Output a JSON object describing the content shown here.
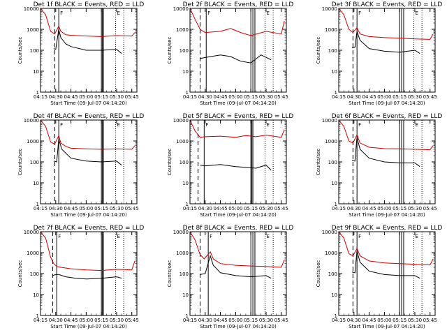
{
  "chart_data": [
    {
      "type": "line",
      "title": "Det 1f BLACK = Events, RED = LLD",
      "xlabel": "Start Time (09-Jul-07 04:14:20)",
      "ylabel": "Counts/sec",
      "yscale": "log",
      "ylim": [
        1,
        10000
      ],
      "x_ticks": [
        "04:15",
        "04:30",
        "04:45",
        "05:00",
        "05:15",
        "05:30",
        "05:45"
      ],
      "y_ticks": [
        "1",
        "10",
        "100",
        "1000",
        "10000"
      ],
      "markers": {
        "dashed": [
          "04:29"
        ],
        "solid": [
          "04:33",
          "05:15",
          "05:16",
          "05:17"
        ],
        "dotted": [
          "05:29",
          "05:37"
        ],
        "letters": [
          "F",
          "E"
        ]
      },
      "series": [
        {
          "name": "RED",
          "color": "#cc0000",
          "x": [
            "04:15",
            "04:20",
            "04:25",
            "04:29",
            "04:33",
            "04:35",
            "04:40",
            "04:45",
            "05:00",
            "05:15",
            "05:30",
            "05:45",
            "05:48"
          ],
          "y": [
            10000,
            5000,
            800,
            600,
            1400,
            800,
            550,
            520,
            480,
            450,
            500,
            480,
            700
          ]
        },
        {
          "name": "BLACK",
          "color": "#000000",
          "x": [
            "04:28",
            "04:30",
            "04:33",
            "04:35",
            "04:40",
            "04:45",
            "05:00",
            "05:15",
            "05:30",
            "05:35"
          ],
          "y": [
            120,
            110,
            1000,
            400,
            200,
            150,
            100,
            100,
            110,
            70
          ]
        }
      ]
    },
    {
      "type": "line",
      "title": "Det 2f BLACK = Events, RED = LLD",
      "xlabel": "Start Time (09-Jul-07 04:14:20)",
      "ylabel": "Counts/sec",
      "yscale": "log",
      "ylim": [
        1,
        10000
      ],
      "x_ticks": [
        "04:15",
        "04:30",
        "04:45",
        "05:00",
        "05:15",
        "05:30",
        "05:45"
      ],
      "y_ticks": [
        "1",
        "10",
        "100",
        "1000",
        "10000"
      ],
      "markers": {
        "dashed": [
          "04:25"
        ],
        "solid": [
          "04:31",
          "05:15",
          "05:17",
          "05:19"
        ],
        "dotted": [
          "05:29",
          "05:37"
        ],
        "letters": [
          "F",
          "E"
        ]
      },
      "series": [
        {
          "name": "RED",
          "color": "#cc0000",
          "x": [
            "04:15",
            "04:20",
            "04:25",
            "04:30",
            "04:45",
            "04:55",
            "05:05",
            "05:15",
            "05:30",
            "05:45",
            "05:48"
          ],
          "y": [
            10000,
            3000,
            1000,
            700,
            800,
            1100,
            700,
            500,
            800,
            600,
            2500
          ]
        },
        {
          "name": "BLACK",
          "color": "#000000",
          "x": [
            "04:25",
            "04:30",
            "04:45",
            "04:55",
            "05:05",
            "05:15",
            "05:25",
            "05:35"
          ],
          "y": [
            40,
            45,
            60,
            50,
            30,
            25,
            60,
            35
          ]
        }
      ]
    },
    {
      "type": "line",
      "title": "Det 3f BLACK = Events, RED = LLD",
      "xlabel": "Start Time (09-Jul-07 04:14:20)",
      "ylabel": "Counts/sec",
      "yscale": "log",
      "ylim": [
        1,
        10000
      ],
      "x_ticks": [
        "04:15",
        "04:30",
        "04:45",
        "05:00",
        "05:15",
        "05:30",
        "05:45"
      ],
      "y_ticks": [
        "1",
        "10",
        "100",
        "1000",
        "10000"
      ],
      "markers": {
        "dashed": [
          "04:29"
        ],
        "solid": [
          "04:33",
          "05:15",
          "05:17",
          "05:19"
        ],
        "dotted": [
          "05:29",
          "05:37"
        ],
        "letters": [
          "F",
          "E"
        ]
      },
      "series": [
        {
          "name": "RED",
          "color": "#cc0000",
          "x": [
            "04:15",
            "04:20",
            "04:25",
            "04:29",
            "04:33",
            "04:36",
            "04:45",
            "05:00",
            "05:15",
            "05:30",
            "05:45",
            "05:48"
          ],
          "y": [
            10000,
            5000,
            1000,
            700,
            1200,
            600,
            450,
            400,
            380,
            350,
            330,
            600
          ]
        },
        {
          "name": "BLACK",
          "color": "#000000",
          "x": [
            "04:28",
            "04:31",
            "04:33",
            "04:36",
            "04:45",
            "05:00",
            "05:15",
            "05:30",
            "05:35"
          ],
          "y": [
            130,
            140,
            800,
            300,
            120,
            90,
            80,
            100,
            70
          ]
        }
      ]
    },
    {
      "type": "line",
      "title": "Det 4f BLACK = Events, RED = LLD",
      "xlabel": "Start Time (09-Jul-07 04:14:20)",
      "ylabel": "Counts/sec",
      "yscale": "log",
      "ylim": [
        1,
        10000
      ],
      "x_ticks": [
        "04:15",
        "04:30",
        "04:45",
        "05:00",
        "05:15",
        "05:30",
        "05:45"
      ],
      "y_ticks": [
        "1",
        "10",
        "100",
        "1000",
        "10000"
      ],
      "markers": {
        "dashed": [
          "04:29"
        ],
        "solid": [
          "04:33",
          "05:15",
          "05:16",
          "05:17"
        ],
        "dotted": [
          "05:29",
          "05:37"
        ],
        "letters": [
          "F",
          "E"
        ]
      },
      "series": [
        {
          "name": "RED",
          "color": "#cc0000",
          "x": [
            "04:15",
            "04:20",
            "04:25",
            "04:29",
            "04:33",
            "04:35",
            "04:40",
            "04:45",
            "05:00",
            "05:15",
            "05:30",
            "05:45",
            "05:48"
          ],
          "y": [
            10000,
            5000,
            900,
            700,
            1800,
            800,
            550,
            450,
            420,
            400,
            420,
            400,
            600
          ]
        },
        {
          "name": "BLACK",
          "color": "#000000",
          "x": [
            "04:28",
            "04:31",
            "04:33",
            "04:36",
            "04:45",
            "05:00",
            "05:15",
            "05:30",
            "05:35"
          ],
          "y": [
            110,
            100,
            1200,
            400,
            150,
            110,
            100,
            110,
            70
          ]
        }
      ]
    },
    {
      "type": "line",
      "title": "Det 5f BLACK = Events, RED = LLD",
      "xlabel": "Start Time (09-Jul-07 04:14:20)",
      "ylabel": "Counts/sec",
      "yscale": "log",
      "ylim": [
        1,
        10000
      ],
      "x_ticks": [
        "04:15",
        "04:30",
        "04:45",
        "05:00",
        "05:15",
        "05:30",
        "05:45"
      ],
      "y_ticks": [
        "1",
        "10",
        "100",
        "1000",
        "10000"
      ],
      "markers": {
        "dashed": [
          "04:23"
        ],
        "solid": [
          "04:29",
          "05:15",
          "05:16",
          "05:17"
        ],
        "dotted": [
          "05:29",
          "05:37"
        ],
        "letters": [
          "F",
          "E"
        ]
      },
      "series": [
        {
          "name": "RED",
          "color": "#cc0000",
          "x": [
            "04:15",
            "04:20",
            "04:25",
            "04:30",
            "04:45",
            "05:00",
            "05:10",
            "05:20",
            "05:30",
            "05:45",
            "05:48"
          ],
          "y": [
            10000,
            3000,
            1500,
            1600,
            1700,
            1500,
            1800,
            1600,
            1900,
            1500,
            3500
          ]
        },
        {
          "name": "BLACK",
          "color": "#000000",
          "x": [
            "04:25",
            "04:30",
            "04:45",
            "05:00",
            "05:10",
            "05:20",
            "05:30",
            "05:35"
          ],
          "y": [
            70,
            65,
            75,
            60,
            55,
            50,
            70,
            40
          ]
        }
      ]
    },
    {
      "type": "line",
      "title": "Det 6f BLACK = Events, RED = LLD",
      "xlabel": "Start Time (09-Jul-07 04:14:20)",
      "ylabel": "Counts/sec",
      "yscale": "log",
      "ylim": [
        1,
        10000
      ],
      "x_ticks": [
        "04:15",
        "04:30",
        "04:45",
        "05:00",
        "05:15",
        "05:30",
        "05:45"
      ],
      "y_ticks": [
        "1",
        "10",
        "100",
        "1000",
        "10000"
      ],
      "markers": {
        "dashed": [
          "04:29"
        ],
        "solid": [
          "04:33",
          "05:15",
          "05:17",
          "05:19"
        ],
        "dotted": [
          "05:29",
          "05:37"
        ],
        "letters": [
          "F",
          "E"
        ]
      },
      "series": [
        {
          "name": "RED",
          "color": "#cc0000",
          "x": [
            "04:15",
            "04:20",
            "04:25",
            "04:29",
            "04:33",
            "04:36",
            "04:45",
            "05:00",
            "05:15",
            "05:30",
            "05:45",
            "05:48"
          ],
          "y": [
            10000,
            5000,
            1000,
            800,
            2000,
            800,
            500,
            430,
            420,
            400,
            380,
            600
          ]
        },
        {
          "name": "BLACK",
          "color": "#000000",
          "x": [
            "04:28",
            "04:31",
            "04:33",
            "04:36",
            "04:45",
            "05:00",
            "05:15",
            "05:30",
            "05:35"
          ],
          "y": [
            120,
            110,
            1500,
            400,
            150,
            100,
            90,
            90,
            60
          ]
        }
      ]
    },
    {
      "type": "line",
      "title": "Det 7f BLACK = Events, RED = LLD",
      "xlabel": "Start Time (09-Jul-07 04:14:20)",
      "ylabel": "Counts/sec",
      "yscale": "log",
      "ylim": [
        1,
        10000
      ],
      "x_ticks": [
        "04:15",
        "04:30",
        "04:45",
        "05:00",
        "05:15",
        "05:30",
        "05:45"
      ],
      "y_ticks": [
        "1",
        "10",
        "100",
        "1000",
        "10000"
      ],
      "markers": {
        "dashed": [
          "04:27"
        ],
        "solid": [
          "04:31",
          "05:15",
          "05:16",
          "05:17"
        ],
        "dotted": [
          "05:29",
          "05:37"
        ],
        "letters": [
          "F",
          "E"
        ]
      },
      "series": [
        {
          "name": "RED",
          "color": "#cc0000",
          "x": [
            "04:15",
            "04:20",
            "04:25",
            "04:28",
            "04:31",
            "04:35",
            "04:45",
            "05:00",
            "05:15",
            "05:30",
            "05:45",
            "05:48"
          ],
          "y": [
            10000,
            5000,
            600,
            300,
            220,
            200,
            170,
            150,
            140,
            160,
            150,
            400
          ]
        },
        {
          "name": "BLACK",
          "color": "#000000",
          "x": [
            "04:27",
            "04:30",
            "04:33",
            "04:40",
            "04:50",
            "05:00",
            "05:15",
            "05:30",
            "05:35"
          ],
          "y": [
            80,
            90,
            90,
            70,
            60,
            55,
            60,
            70,
            60
          ]
        }
      ]
    },
    {
      "type": "line",
      "title": "Det 8f BLACK = Events, RED = LLD",
      "xlabel": "Start Time (09-Jul-07 04:14:20)",
      "ylabel": "Counts/sec",
      "yscale": "log",
      "ylim": [
        1,
        10000
      ],
      "x_ticks": [
        "04:15",
        "04:30",
        "04:45",
        "05:00",
        "05:15",
        "05:30",
        "05:45"
      ],
      "y_ticks": [
        "1",
        "10",
        "100",
        "1000",
        "10000"
      ],
      "markers": {
        "dashed": [
          "04:25"
        ],
        "solid": [
          "04:33",
          "05:15",
          "05:17",
          "05:19"
        ],
        "dotted": [
          "05:29",
          "05:37"
        ],
        "letters": [
          "F",
          "E"
        ]
      },
      "series": [
        {
          "name": "RED",
          "color": "#cc0000",
          "x": [
            "04:15",
            "04:20",
            "04:25",
            "04:29",
            "04:35",
            "04:38",
            "04:45",
            "05:00",
            "05:15",
            "05:30",
            "05:45",
            "05:48"
          ],
          "y": [
            10000,
            4000,
            800,
            500,
            1100,
            500,
            300,
            250,
            230,
            220,
            200,
            450
          ]
        },
        {
          "name": "BLACK",
          "color": "#000000",
          "x": [
            "04:25",
            "04:30",
            "04:35",
            "04:38",
            "04:45",
            "05:00",
            "05:15",
            "05:30",
            "05:35"
          ],
          "y": [
            90,
            100,
            700,
            250,
            110,
            80,
            70,
            80,
            60
          ]
        }
      ]
    },
    {
      "type": "line",
      "title": "Det 9f BLACK = Events, RED = LLD",
      "xlabel": "Start Time (09-Jul-07 04:14:20)",
      "ylabel": "Counts/sec",
      "yscale": "log",
      "ylim": [
        1,
        10000
      ],
      "x_ticks": [
        "04:15",
        "04:30",
        "04:45",
        "05:00",
        "05:15",
        "05:30",
        "05:45"
      ],
      "y_ticks": [
        "1",
        "10",
        "100",
        "1000",
        "10000"
      ],
      "markers": {
        "dashed": [
          "04:29"
        ],
        "solid": [
          "04:33",
          "05:15",
          "05:17",
          "05:19"
        ],
        "dotted": [
          "05:29",
          "05:37"
        ],
        "letters": [
          "F",
          "E"
        ]
      },
      "series": [
        {
          "name": "RED",
          "color": "#cc0000",
          "x": [
            "04:15",
            "04:20",
            "04:25",
            "04:29",
            "04:33",
            "04:36",
            "04:45",
            "05:00",
            "05:15",
            "05:30",
            "05:45",
            "05:48"
          ],
          "y": [
            10000,
            5000,
            900,
            700,
            1600,
            700,
            400,
            320,
            300,
            280,
            260,
            500
          ]
        },
        {
          "name": "BLACK",
          "color": "#000000",
          "x": [
            "04:28",
            "04:31",
            "04:33",
            "04:36",
            "04:45",
            "05:00",
            "05:15",
            "05:30",
            "05:35"
          ],
          "y": [
            120,
            110,
            1200,
            350,
            130,
            90,
            80,
            80,
            60
          ]
        }
      ]
    }
  ]
}
